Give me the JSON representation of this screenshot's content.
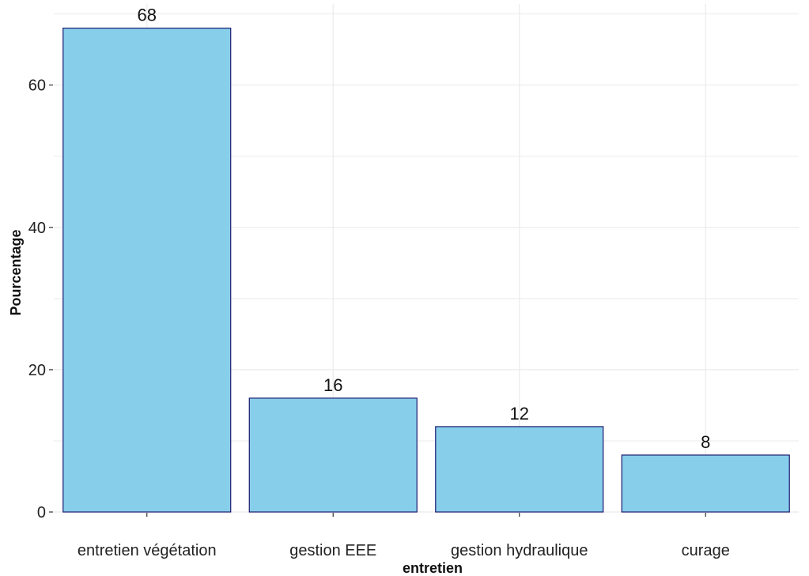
{
  "chart_data": {
    "type": "bar",
    "categories": [
      "entretien végétation",
      "gestion EEE",
      "gestion hydraulique",
      "curage"
    ],
    "values": [
      68,
      16,
      12,
      8
    ],
    "data_labels": [
      "68",
      "16",
      "12",
      "8"
    ],
    "xlabel": "entretien",
    "ylabel": "Pourcentage",
    "ylim": [
      0,
      71.4
    ],
    "y_ticks": [
      0,
      20,
      40,
      60
    ],
    "y_tick_labels": [
      "0",
      "20",
      "40",
      "60"
    ],
    "y_minor_ticks": [
      10,
      30,
      50,
      70
    ],
    "grid": true,
    "bar_fill": "#87CEEB",
    "bar_stroke": "#1a1a6e",
    "grid_color": "#ebebeb"
  }
}
